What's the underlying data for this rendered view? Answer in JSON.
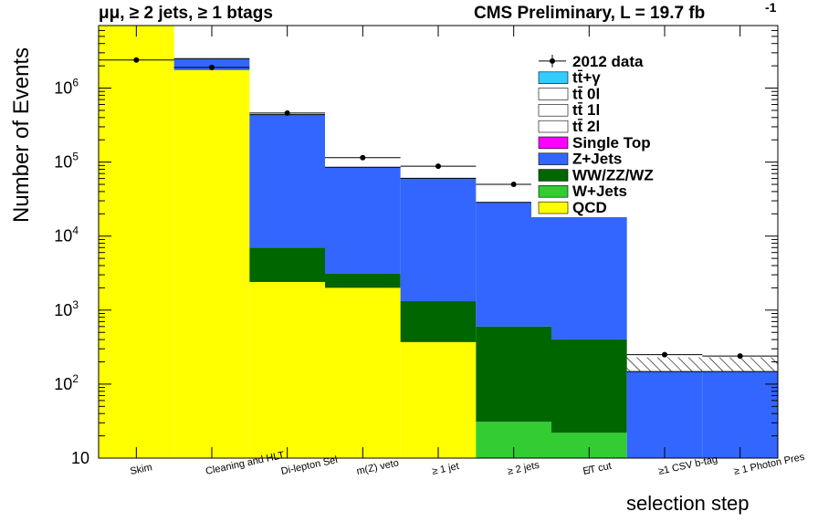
{
  "header": {
    "left": "μμ, ≥ 2 jets, ≥ 1 btags",
    "right": "CMS Preliminary, L = 19.7 fb",
    "right_superscript": "-1"
  },
  "chart_data": {
    "type": "bar",
    "stacked": true,
    "title": "μμ, ≥ 2 jets, ≥ 1 btags",
    "xlabel": "selection step",
    "ylabel": "Number of Events",
    "yscale": "log",
    "ylim": [
      10,
      7000000
    ],
    "yticks": [
      {
        "value": 10,
        "label": "10"
      },
      {
        "value": 100,
        "label": "10^2"
      },
      {
        "value": 1000,
        "label": "10^3"
      },
      {
        "value": 10000,
        "label": "10^4"
      },
      {
        "value": 100000,
        "label": "10^5"
      },
      {
        "value": 1000000,
        "label": "10^6"
      }
    ],
    "categories": [
      "Skim",
      "Cleaning and HLT",
      "Di-lepton Sel",
      "m(Z) veto",
      "≥ 1 jet",
      "≥ 2 jets",
      "E̸T cut",
      "≥1 CSV b-tag",
      "≥ 1 Photon Pres"
    ],
    "series": [
      {
        "name": "QCD",
        "color": "#ffff00",
        "values": [
          7000000,
          1750000,
          2400,
          2000,
          370,
          0,
          0,
          0,
          0
        ]
      },
      {
        "name": "W+Jets",
        "color": "#33cc33",
        "values": [
          0,
          0,
          0,
          0,
          0,
          31,
          22,
          0,
          0
        ]
      },
      {
        "name": "WW/ZZ/WZ",
        "color": "#006600",
        "values": [
          0,
          0,
          4600,
          1100,
          950,
          570,
          380,
          0,
          0
        ]
      },
      {
        "name": "Z+Jets",
        "color": "#3366ff",
        "values": [
          0,
          750000,
          430000,
          82000,
          59000,
          27800,
          18500,
          148,
          148
        ]
      },
      {
        "name": "Single Top",
        "color": "#ff00ff",
        "values": [
          0,
          0,
          0,
          0,
          0,
          150,
          300,
          0,
          0
        ]
      },
      {
        "name": "tt̄ 2l",
        "color": "#ffffff",
        "values": [
          0,
          0,
          0,
          0,
          0,
          0,
          0,
          0,
          0
        ]
      },
      {
        "name": "tt̄ 1l",
        "color": "#ffffff",
        "values": [
          0,
          0,
          0,
          0,
          0,
          0,
          0,
          0,
          0
        ]
      },
      {
        "name": "tt̄ 0l",
        "color": "#ffffff",
        "values": [
          0,
          0,
          0,
          0,
          0,
          0,
          0,
          0,
          0
        ]
      },
      {
        "name": "tt̄+γ",
        "color": "#33ccff",
        "values": [
          0,
          0,
          0,
          0,
          0,
          0,
          0,
          0,
          0
        ]
      }
    ],
    "data": {
      "name": "2012 data",
      "values": [
        2400000,
        1900000,
        460000,
        115000,
        88000,
        50000,
        28000,
        250,
        240
      ]
    },
    "mc_total_uncertainty": [
      {
        "category": "≥1 CSV b-tag",
        "low": 150,
        "high": 230
      },
      {
        "category": "≥ 1 Photon Pres",
        "low": 150,
        "high": 230
      }
    ],
    "legend": {
      "placement": "top-right",
      "entries": [
        {
          "label": "2012 data",
          "style": "marker"
        },
        {
          "label": "tt̄+γ",
          "color": "#33ccff"
        },
        {
          "label": "tt̄ 0l",
          "color": "#ffffff"
        },
        {
          "label": "tt̄ 1l",
          "color": "#ffffff"
        },
        {
          "label": "tt̄ 2l",
          "color": "#ffffff"
        },
        {
          "label": "Single Top",
          "color": "#ff00ff"
        },
        {
          "label": "Z+Jets",
          "color": "#3366ff"
        },
        {
          "label": "WW/ZZ/WZ",
          "color": "#006600"
        },
        {
          "label": "W+Jets",
          "color": "#33cc33"
        },
        {
          "label": "QCD",
          "color": "#ffff00"
        }
      ]
    }
  }
}
